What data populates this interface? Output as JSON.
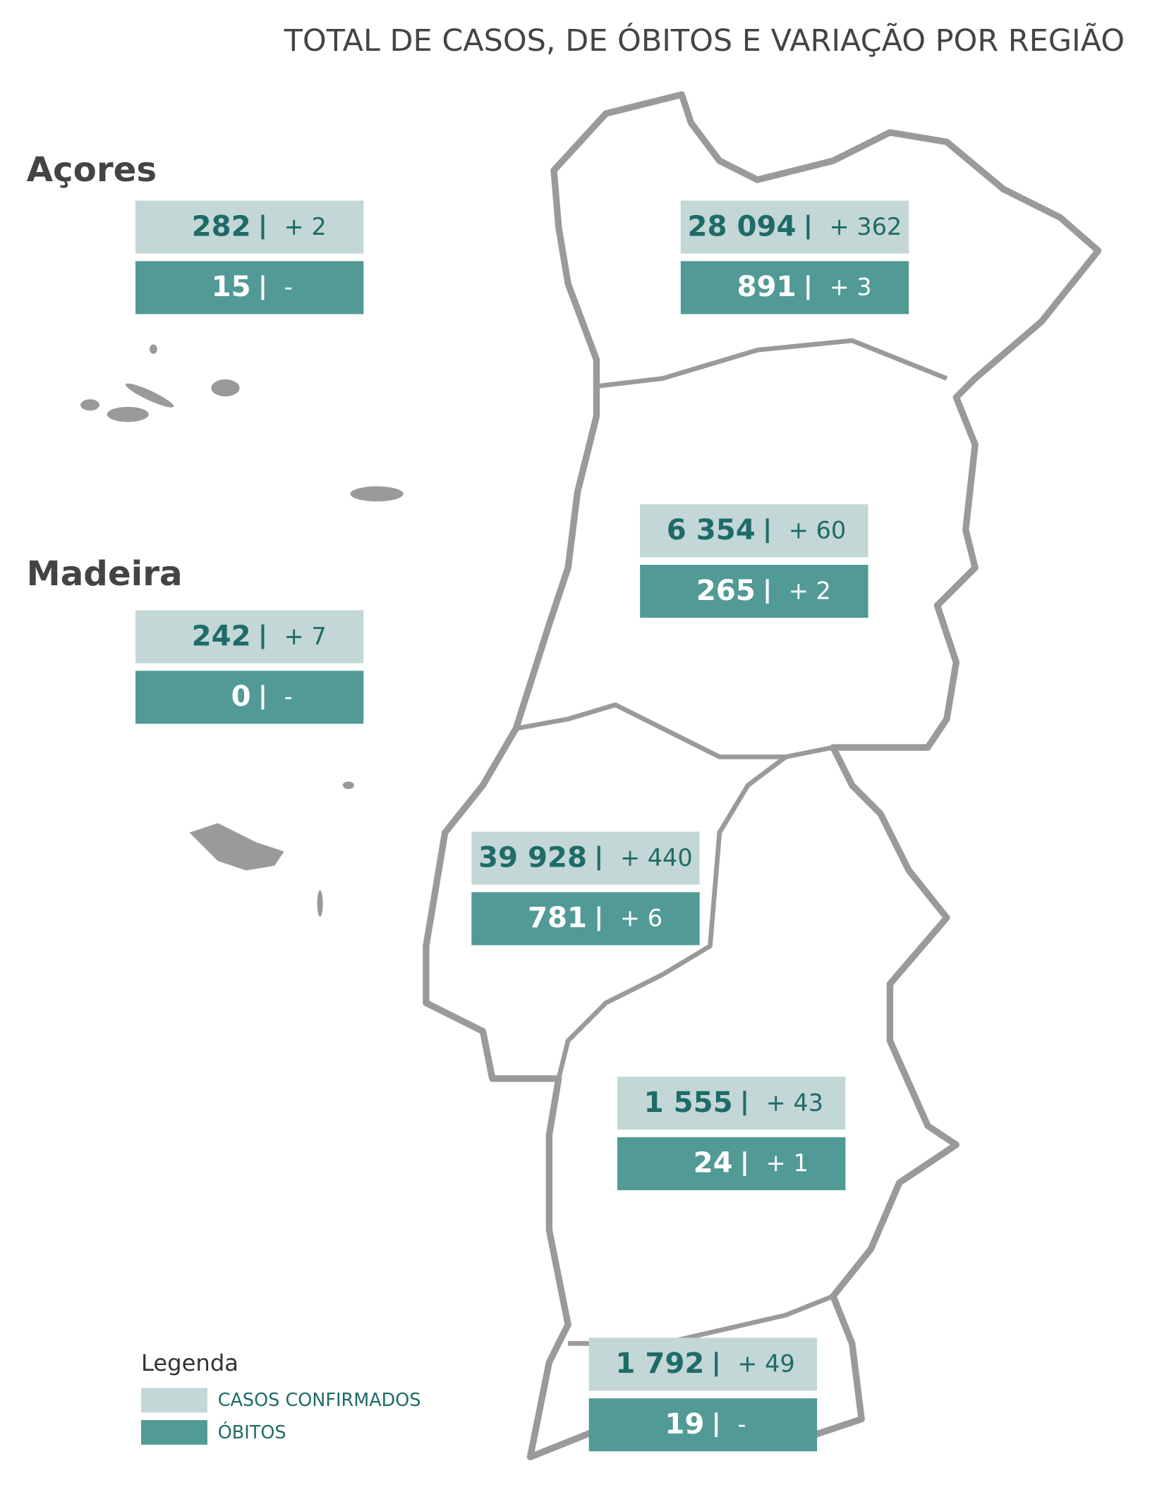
{
  "title": "TOTAL DE CASOS, DE ÓBITOS  E VARIAÇÃO POR REGIÃO",
  "islands": [
    {
      "label": "Açores",
      "cases": "282",
      "cases_change": "+ 2",
      "deaths": "15",
      "deaths_change": "-"
    },
    {
      "label": "Madeira",
      "cases": "242",
      "cases_change": "+ 7",
      "deaths": "0",
      "deaths_change": "-"
    }
  ],
  "mainland": [
    {
      "cases": "28 094",
      "cases_change": "+ 362",
      "deaths": "891",
      "deaths_change": "+ 3"
    },
    {
      "cases": "6 354",
      "cases_change": "+ 60",
      "deaths": "265",
      "deaths_change": "+ 2"
    },
    {
      "cases": "39 928",
      "cases_change": "+ 440",
      "deaths": "781",
      "deaths_change": "+ 6"
    },
    {
      "cases": "1 555",
      "cases_change": "+ 43",
      "deaths": "24",
      "deaths_change": "+ 1"
    },
    {
      "cases": "1 792",
      "cases_change": "+ 49",
      "deaths": "19",
      "deaths_change": "-"
    }
  ],
  "legend": {
    "title": "Legenda",
    "items": [
      "CASOS CONFIRMADOS",
      "ÓBITOS"
    ]
  }
}
